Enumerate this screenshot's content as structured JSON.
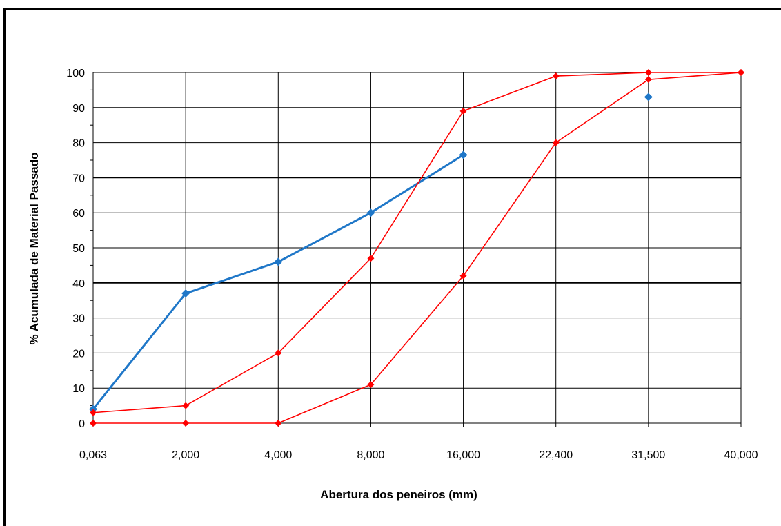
{
  "chart_data": {
    "type": "line",
    "xlabel": "Abertura dos peneiros (mm)",
    "ylabel": "% Acumulada de Material Passado",
    "categories": [
      "0,063",
      "2,000",
      "4,000",
      "8,000",
      "16,000",
      "22,400",
      "31,500",
      "40,000"
    ],
    "ylim": [
      0,
      100
    ],
    "yticks": [
      0,
      10,
      20,
      30,
      40,
      50,
      60,
      70,
      80,
      90,
      100
    ],
    "grid": true,
    "legend": "none",
    "series": [
      {
        "color": "#1f77c8",
        "values": [
          4,
          37,
          46,
          60,
          76.5,
          null,
          93,
          null
        ]
      },
      {
        "color": "#ff0000",
        "values": [
          3,
          5,
          20,
          47,
          89,
          99,
          100,
          100
        ]
      },
      {
        "color": "#ff0000",
        "values": [
          0,
          0,
          0,
          11,
          42,
          80,
          98,
          100
        ]
      }
    ]
  }
}
